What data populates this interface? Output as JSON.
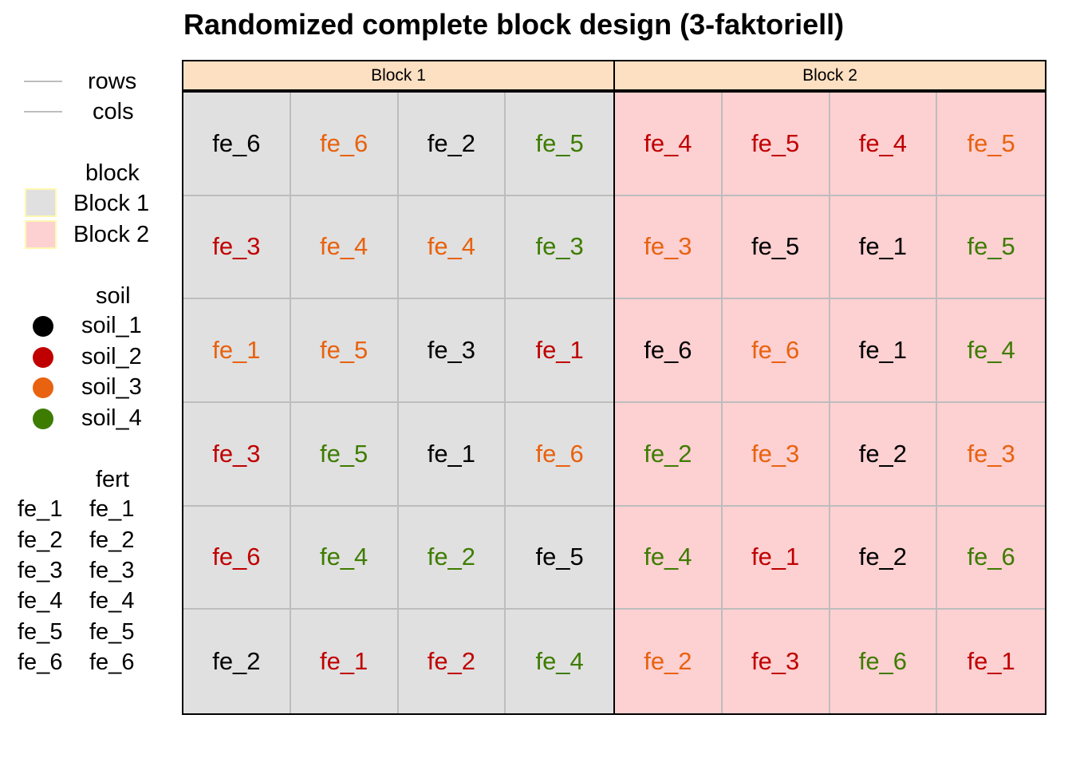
{
  "title": "Randomized complete block design (3-faktoriell)",
  "legend": {
    "lines": [
      {
        "label": "rows",
        "color": "#bdbdbd"
      },
      {
        "label": "cols",
        "color": "#bdbdbd"
      }
    ],
    "block": {
      "title": "block",
      "items": [
        {
          "label": "Block 1",
          "color": "#e0e0e0"
        },
        {
          "label": "Block 2",
          "color": "#fdd0d2"
        }
      ]
    },
    "soil": {
      "title": "soil",
      "items": [
        {
          "label": "soil_1",
          "color": "#000000"
        },
        {
          "label": "soil_2",
          "color": "#c00000"
        },
        {
          "label": "soil_3",
          "color": "#e8620f"
        },
        {
          "label": "soil_4",
          "color": "#3e7c00"
        }
      ]
    },
    "fert": {
      "title": "fert",
      "items": [
        {
          "key": "fe_1",
          "label": "fe_1"
        },
        {
          "key": "fe_2",
          "label": "fe_2"
        },
        {
          "key": "fe_3",
          "label": "fe_3"
        },
        {
          "key": "fe_4",
          "label": "fe_4"
        },
        {
          "key": "fe_5",
          "label": "fe_5"
        },
        {
          "key": "fe_6",
          "label": "fe_6"
        }
      ]
    }
  },
  "chart_data": {
    "type": "table",
    "title": "Randomized complete block design (3-faktoriell)",
    "colors": {
      "grid": "#bdbdbd",
      "strip": "#fde0c2",
      "soil_1": "#000000",
      "soil_2": "#c00000",
      "soil_3": "#e8620f",
      "soil_4": "#3e7c00"
    },
    "panels": [
      {
        "name": "Block 1",
        "fill": "#e0e0e0",
        "rows": [
          [
            {
              "fert": "fe_6",
              "soil": "soil_1"
            },
            {
              "fert": "fe_6",
              "soil": "soil_3"
            },
            {
              "fert": "fe_2",
              "soil": "soil_1"
            },
            {
              "fert": "fe_5",
              "soil": "soil_4"
            }
          ],
          [
            {
              "fert": "fe_3",
              "soil": "soil_2"
            },
            {
              "fert": "fe_4",
              "soil": "soil_3"
            },
            {
              "fert": "fe_4",
              "soil": "soil_3"
            },
            {
              "fert": "fe_3",
              "soil": "soil_4"
            }
          ],
          [
            {
              "fert": "fe_1",
              "soil": "soil_3"
            },
            {
              "fert": "fe_5",
              "soil": "soil_3"
            },
            {
              "fert": "fe_3",
              "soil": "soil_1"
            },
            {
              "fert": "fe_1",
              "soil": "soil_2"
            }
          ],
          [
            {
              "fert": "fe_3",
              "soil": "soil_2"
            },
            {
              "fert": "fe_5",
              "soil": "soil_4"
            },
            {
              "fert": "fe_1",
              "soil": "soil_1"
            },
            {
              "fert": "fe_6",
              "soil": "soil_3"
            }
          ],
          [
            {
              "fert": "fe_6",
              "soil": "soil_2"
            },
            {
              "fert": "fe_4",
              "soil": "soil_4"
            },
            {
              "fert": "fe_2",
              "soil": "soil_4"
            },
            {
              "fert": "fe_5",
              "soil": "soil_1"
            }
          ],
          [
            {
              "fert": "fe_2",
              "soil": "soil_1"
            },
            {
              "fert": "fe_1",
              "soil": "soil_2"
            },
            {
              "fert": "fe_2",
              "soil": "soil_2"
            },
            {
              "fert": "fe_4",
              "soil": "soil_4"
            }
          ]
        ]
      },
      {
        "name": "Block 2",
        "fill": "#fdd0d2",
        "rows": [
          [
            {
              "fert": "fe_4",
              "soil": "soil_2"
            },
            {
              "fert": "fe_5",
              "soil": "soil_2"
            },
            {
              "fert": "fe_4",
              "soil": "soil_2"
            },
            {
              "fert": "fe_5",
              "soil": "soil_3"
            }
          ],
          [
            {
              "fert": "fe_3",
              "soil": "soil_3"
            },
            {
              "fert": "fe_5",
              "soil": "soil_1"
            },
            {
              "fert": "fe_1",
              "soil": "soil_1"
            },
            {
              "fert": "fe_5",
              "soil": "soil_4"
            }
          ],
          [
            {
              "fert": "fe_6",
              "soil": "soil_1"
            },
            {
              "fert": "fe_6",
              "soil": "soil_3"
            },
            {
              "fert": "fe_1",
              "soil": "soil_1"
            },
            {
              "fert": "fe_4",
              "soil": "soil_4"
            }
          ],
          [
            {
              "fert": "fe_2",
              "soil": "soil_4"
            },
            {
              "fert": "fe_3",
              "soil": "soil_3"
            },
            {
              "fert": "fe_2",
              "soil": "soil_1"
            },
            {
              "fert": "fe_3",
              "soil": "soil_3"
            }
          ],
          [
            {
              "fert": "fe_4",
              "soil": "soil_4"
            },
            {
              "fert": "fe_1",
              "soil": "soil_2"
            },
            {
              "fert": "fe_2",
              "soil": "soil_1"
            },
            {
              "fert": "fe_6",
              "soil": "soil_4"
            }
          ],
          [
            {
              "fert": "fe_2",
              "soil": "soil_3"
            },
            {
              "fert": "fe_3",
              "soil": "soil_2"
            },
            {
              "fert": "fe_6",
              "soil": "soil_4"
            },
            {
              "fert": "fe_1",
              "soil": "soil_2"
            }
          ]
        ]
      }
    ]
  }
}
